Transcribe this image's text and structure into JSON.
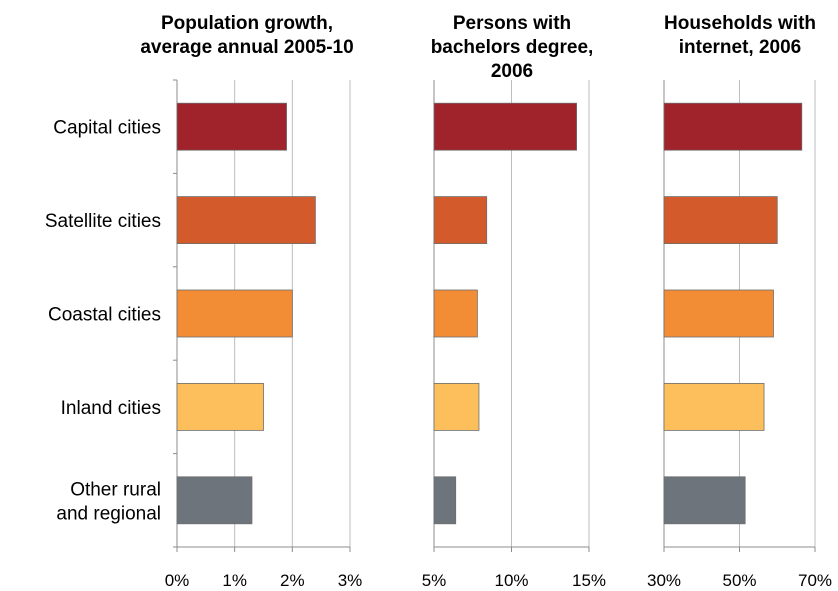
{
  "chart_data": {
    "type": "bar",
    "orientation": "horizontal",
    "categories": [
      [
        "Capital cities"
      ],
      [
        "Satellite cities"
      ],
      [
        "Coastal cities"
      ],
      [
        "Inland cities"
      ],
      [
        "Other rural",
        "and regional"
      ]
    ],
    "colors": [
      "#A0222A",
      "#D35A2A",
      "#F28C35",
      "#FDBF5C",
      "#6D747C"
    ],
    "grid": true,
    "panels": [
      {
        "title_lines": [
          "Population growth,",
          "average annual 2005-10"
        ],
        "values": [
          1.9,
          2.4,
          2.0,
          1.5,
          1.3
        ],
        "xlim": [
          0,
          3
        ],
        "ticks": [
          0,
          1,
          2,
          3
        ],
        "tick_labels": [
          "0%",
          "1%",
          "2%",
          "3%"
        ],
        "unit": "%"
      },
      {
        "title_lines": [
          "Persons with",
          "bachelors degree,",
          "2006"
        ],
        "values": [
          14.2,
          8.4,
          7.8,
          7.9,
          6.4
        ],
        "xlim": [
          5,
          15
        ],
        "ticks": [
          5,
          10,
          15
        ],
        "tick_labels": [
          "5%",
          "10%",
          "15%"
        ],
        "unit": "%"
      },
      {
        "title_lines": [
          "Households with",
          "internet, 2006"
        ],
        "values": [
          66.5,
          60,
          59,
          56.5,
          51.5
        ],
        "xlim": [
          30,
          70
        ],
        "ticks": [
          30,
          50,
          70
        ],
        "tick_labels": [
          "30%",
          "50%",
          "70%"
        ],
        "unit": "%"
      }
    ]
  }
}
